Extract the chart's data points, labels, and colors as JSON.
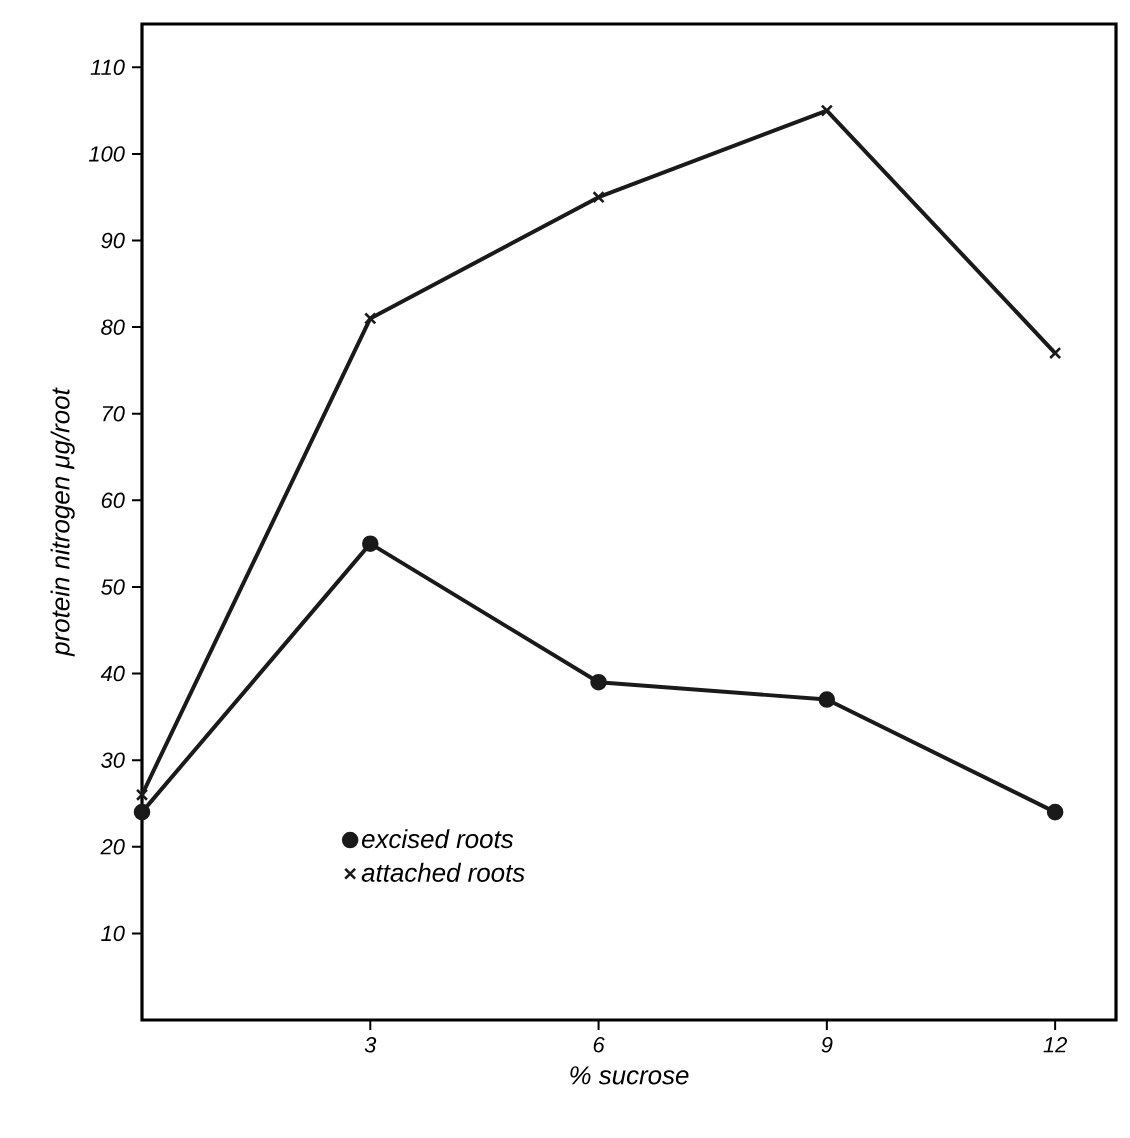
{
  "chart_data": {
    "type": "line",
    "xlabel": "% sucrose",
    "ylabel": "protein nitrogen μg/root",
    "x": [
      0,
      3,
      6,
      9,
      12
    ],
    "series": [
      {
        "name": "excised roots",
        "color": "#1a1a1a",
        "marker": "circle",
        "values": [
          24,
          55,
          39,
          37,
          24
        ]
      },
      {
        "name": "attached roots",
        "color": "#1a1a1a",
        "marker": "cross",
        "values": [
          26,
          81,
          95,
          105,
          77
        ]
      }
    ],
    "xlim": [
      0,
      12.8
    ],
    "ylim": [
      0,
      115
    ],
    "xticks": [
      3,
      6,
      9,
      12
    ],
    "yticks": [
      10,
      20,
      30,
      40,
      50,
      60,
      70,
      80,
      90,
      100,
      110
    ],
    "legend": "bottom left"
  }
}
